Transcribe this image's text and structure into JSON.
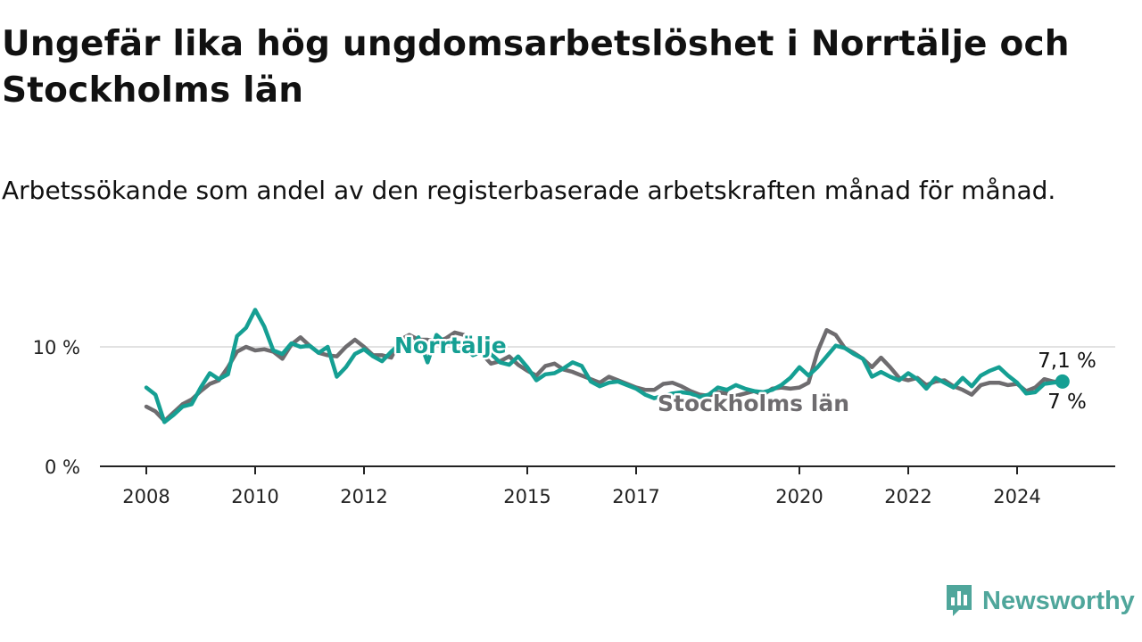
{
  "title": "Ungefär lika hög ungdomsarbetslöshet i Norrtälje och Stockholms län",
  "subtitle": "Arbetssökande som andel av den registerbaserade arbetskraften månad för månad.",
  "brand": {
    "name": "Newsworthy",
    "icon": "newsworthy-chart-icon",
    "color": "#4fa69b"
  },
  "chart_data": {
    "type": "line",
    "x_ticks": [
      "2008",
      "2010",
      "2012",
      "2015",
      "2017",
      "2020",
      "2022",
      "2024"
    ],
    "y_ticks": [
      "0 %",
      "10 %"
    ],
    "ylim": [
      0,
      14
    ],
    "grid": true,
    "series": [
      {
        "name": "Stockholms län",
        "color": "#6e6c6f",
        "end_label": "7 %",
        "points": [
          [
            "2008-01",
            5.0
          ],
          [
            "2008-03",
            4.6
          ],
          [
            "2008-05",
            3.8
          ],
          [
            "2008-07",
            4.5
          ],
          [
            "2008-09",
            5.2
          ],
          [
            "2008-11",
            5.6
          ],
          [
            "2009-01",
            6.3
          ],
          [
            "2009-03",
            6.9
          ],
          [
            "2009-05",
            7.2
          ],
          [
            "2009-07",
            8.3
          ],
          [
            "2009-09",
            9.6
          ],
          [
            "2009-11",
            10.0
          ],
          [
            "2010-01",
            9.7
          ],
          [
            "2010-03",
            9.8
          ],
          [
            "2010-05",
            9.6
          ],
          [
            "2010-07",
            9.0
          ],
          [
            "2010-09",
            10.2
          ],
          [
            "2010-11",
            10.8
          ],
          [
            "2011-01",
            10.1
          ],
          [
            "2011-03",
            9.5
          ],
          [
            "2011-05",
            9.3
          ],
          [
            "2011-07",
            9.2
          ],
          [
            "2011-09",
            10.0
          ],
          [
            "2011-11",
            10.6
          ],
          [
            "2012-01",
            10.0
          ],
          [
            "2012-03",
            9.3
          ],
          [
            "2012-05",
            9.3
          ],
          [
            "2012-07",
            9.1
          ],
          [
            "2012-09",
            10.6
          ],
          [
            "2012-11",
            11.0
          ],
          [
            "2013-01",
            10.6
          ],
          [
            "2013-03",
            10.6
          ],
          [
            "2013-05",
            10.4
          ],
          [
            "2013-07",
            10.7
          ],
          [
            "2013-09",
            11.2
          ],
          [
            "2013-11",
            11.0
          ],
          [
            "2014-01",
            10.4
          ],
          [
            "2014-03",
            9.4
          ],
          [
            "2014-05",
            8.6
          ],
          [
            "2014-07",
            8.8
          ],
          [
            "2014-09",
            9.2
          ],
          [
            "2014-11",
            8.5
          ],
          [
            "2015-01",
            8.0
          ],
          [
            "2015-03",
            7.6
          ],
          [
            "2015-05",
            8.4
          ],
          [
            "2015-07",
            8.6
          ],
          [
            "2015-09",
            8.1
          ],
          [
            "2015-11",
            7.9
          ],
          [
            "2016-01",
            7.6
          ],
          [
            "2016-03",
            7.3
          ],
          [
            "2016-05",
            7.0
          ],
          [
            "2016-07",
            7.5
          ],
          [
            "2016-09",
            7.2
          ],
          [
            "2016-11",
            6.9
          ],
          [
            "2017-01",
            6.6
          ],
          [
            "2017-03",
            6.4
          ],
          [
            "2017-05",
            6.4
          ],
          [
            "2017-07",
            6.9
          ],
          [
            "2017-09",
            7.0
          ],
          [
            "2017-11",
            6.7
          ],
          [
            "2018-01",
            6.3
          ],
          [
            "2018-03",
            6.0
          ],
          [
            "2018-05",
            5.9
          ],
          [
            "2018-07",
            6.2
          ],
          [
            "2018-09",
            6.1
          ],
          [
            "2018-11",
            5.9
          ],
          [
            "2019-01",
            6.1
          ],
          [
            "2019-03",
            6.3
          ],
          [
            "2019-05",
            6.0
          ],
          [
            "2019-07",
            6.5
          ],
          [
            "2019-09",
            6.6
          ],
          [
            "2019-11",
            6.5
          ],
          [
            "2020-01",
            6.6
          ],
          [
            "2020-03",
            7.0
          ],
          [
            "2020-05",
            9.6
          ],
          [
            "2020-07",
            11.4
          ],
          [
            "2020-09",
            11.0
          ],
          [
            "2020-11",
            9.9
          ],
          [
            "2021-01",
            9.5
          ],
          [
            "2021-03",
            9.0
          ],
          [
            "2021-05",
            8.3
          ],
          [
            "2021-07",
            9.1
          ],
          [
            "2021-09",
            8.3
          ],
          [
            "2021-11",
            7.4
          ],
          [
            "2022-01",
            7.2
          ],
          [
            "2022-03",
            7.4
          ],
          [
            "2022-05",
            6.8
          ],
          [
            "2022-07",
            7.1
          ],
          [
            "2022-09",
            7.2
          ],
          [
            "2022-11",
            6.7
          ],
          [
            "2023-01",
            6.4
          ],
          [
            "2023-03",
            6.0
          ],
          [
            "2023-05",
            6.8
          ],
          [
            "2023-07",
            7.0
          ],
          [
            "2023-09",
            7.0
          ],
          [
            "2023-11",
            6.8
          ],
          [
            "2024-01",
            6.9
          ],
          [
            "2024-03",
            6.3
          ],
          [
            "2024-05",
            6.6
          ],
          [
            "2024-07",
            7.3
          ],
          [
            "2024-09",
            7.1
          ],
          [
            "2024-11",
            7.0
          ]
        ]
      },
      {
        "name": "Norrtälje",
        "color": "#159f93",
        "end_label": "7,1 %",
        "points": [
          [
            "2008-01",
            6.6
          ],
          [
            "2008-03",
            6.0
          ],
          [
            "2008-05",
            3.7
          ],
          [
            "2008-07",
            4.3
          ],
          [
            "2008-09",
            5.0
          ],
          [
            "2008-11",
            5.2
          ],
          [
            "2009-01",
            6.6
          ],
          [
            "2009-03",
            7.8
          ],
          [
            "2009-05",
            7.3
          ],
          [
            "2009-07",
            7.7
          ],
          [
            "2009-09",
            10.9
          ],
          [
            "2009-11",
            11.6
          ],
          [
            "2010-01",
            13.1
          ],
          [
            "2010-03",
            11.7
          ],
          [
            "2010-05",
            9.7
          ],
          [
            "2010-07",
            9.4
          ],
          [
            "2010-09",
            10.3
          ],
          [
            "2010-11",
            10.0
          ],
          [
            "2011-01",
            10.1
          ],
          [
            "2011-03",
            9.5
          ],
          [
            "2011-05",
            10.0
          ],
          [
            "2011-07",
            7.5
          ],
          [
            "2011-09",
            8.3
          ],
          [
            "2011-11",
            9.4
          ],
          [
            "2012-01",
            9.8
          ],
          [
            "2012-03",
            9.2
          ],
          [
            "2012-05",
            8.8
          ],
          [
            "2012-07",
            9.6
          ],
          [
            "2012-09",
            10.3
          ],
          [
            "2012-11",
            9.6
          ],
          [
            "2013-01",
            10.8
          ],
          [
            "2013-03",
            8.7
          ],
          [
            "2013-05",
            11.0
          ],
          [
            "2013-07",
            10.3
          ],
          [
            "2013-09",
            10.6
          ],
          [
            "2013-11",
            10.0
          ],
          [
            "2014-01",
            9.3
          ],
          [
            "2014-03",
            9.6
          ],
          [
            "2014-05",
            9.4
          ],
          [
            "2014-07",
            8.7
          ],
          [
            "2014-09",
            8.5
          ],
          [
            "2014-11",
            9.2
          ],
          [
            "2015-01",
            8.3
          ],
          [
            "2015-03",
            7.2
          ],
          [
            "2015-05",
            7.7
          ],
          [
            "2015-07",
            7.8
          ],
          [
            "2015-09",
            8.2
          ],
          [
            "2015-11",
            8.7
          ],
          [
            "2016-01",
            8.4
          ],
          [
            "2016-03",
            7.1
          ],
          [
            "2016-05",
            6.7
          ],
          [
            "2016-07",
            7.0
          ],
          [
            "2016-09",
            7.1
          ],
          [
            "2016-11",
            6.8
          ],
          [
            "2017-01",
            6.5
          ],
          [
            "2017-03",
            6.0
          ],
          [
            "2017-05",
            5.7
          ],
          [
            "2017-07",
            5.9
          ],
          [
            "2017-09",
            6.1
          ],
          [
            "2017-11",
            6.2
          ],
          [
            "2018-01",
            6.1
          ],
          [
            "2018-03",
            5.8
          ],
          [
            "2018-05",
            6.0
          ],
          [
            "2018-07",
            6.6
          ],
          [
            "2018-09",
            6.4
          ],
          [
            "2018-11",
            6.8
          ],
          [
            "2019-01",
            6.5
          ],
          [
            "2019-03",
            6.3
          ],
          [
            "2019-05",
            6.2
          ],
          [
            "2019-07",
            6.4
          ],
          [
            "2019-09",
            6.8
          ],
          [
            "2019-11",
            7.4
          ],
          [
            "2020-01",
            8.3
          ],
          [
            "2020-03",
            7.6
          ],
          [
            "2020-05",
            8.3
          ],
          [
            "2020-07",
            9.2
          ],
          [
            "2020-09",
            10.1
          ],
          [
            "2020-11",
            9.9
          ],
          [
            "2021-01",
            9.4
          ],
          [
            "2021-03",
            9.0
          ],
          [
            "2021-05",
            7.5
          ],
          [
            "2021-07",
            7.9
          ],
          [
            "2021-09",
            7.5
          ],
          [
            "2021-11",
            7.2
          ],
          [
            "2022-01",
            7.8
          ],
          [
            "2022-03",
            7.3
          ],
          [
            "2022-05",
            6.5
          ],
          [
            "2022-07",
            7.4
          ],
          [
            "2022-09",
            7.0
          ],
          [
            "2022-11",
            6.6
          ],
          [
            "2023-01",
            7.4
          ],
          [
            "2023-03",
            6.7
          ],
          [
            "2023-05",
            7.6
          ],
          [
            "2023-07",
            8.0
          ],
          [
            "2023-09",
            8.3
          ],
          [
            "2023-11",
            7.6
          ],
          [
            "2024-01",
            7.0
          ],
          [
            "2024-03",
            6.1
          ],
          [
            "2024-05",
            6.2
          ],
          [
            "2024-07",
            6.9
          ],
          [
            "2024-09",
            7.0
          ],
          [
            "2024-11",
            7.1
          ]
        ]
      }
    ]
  }
}
